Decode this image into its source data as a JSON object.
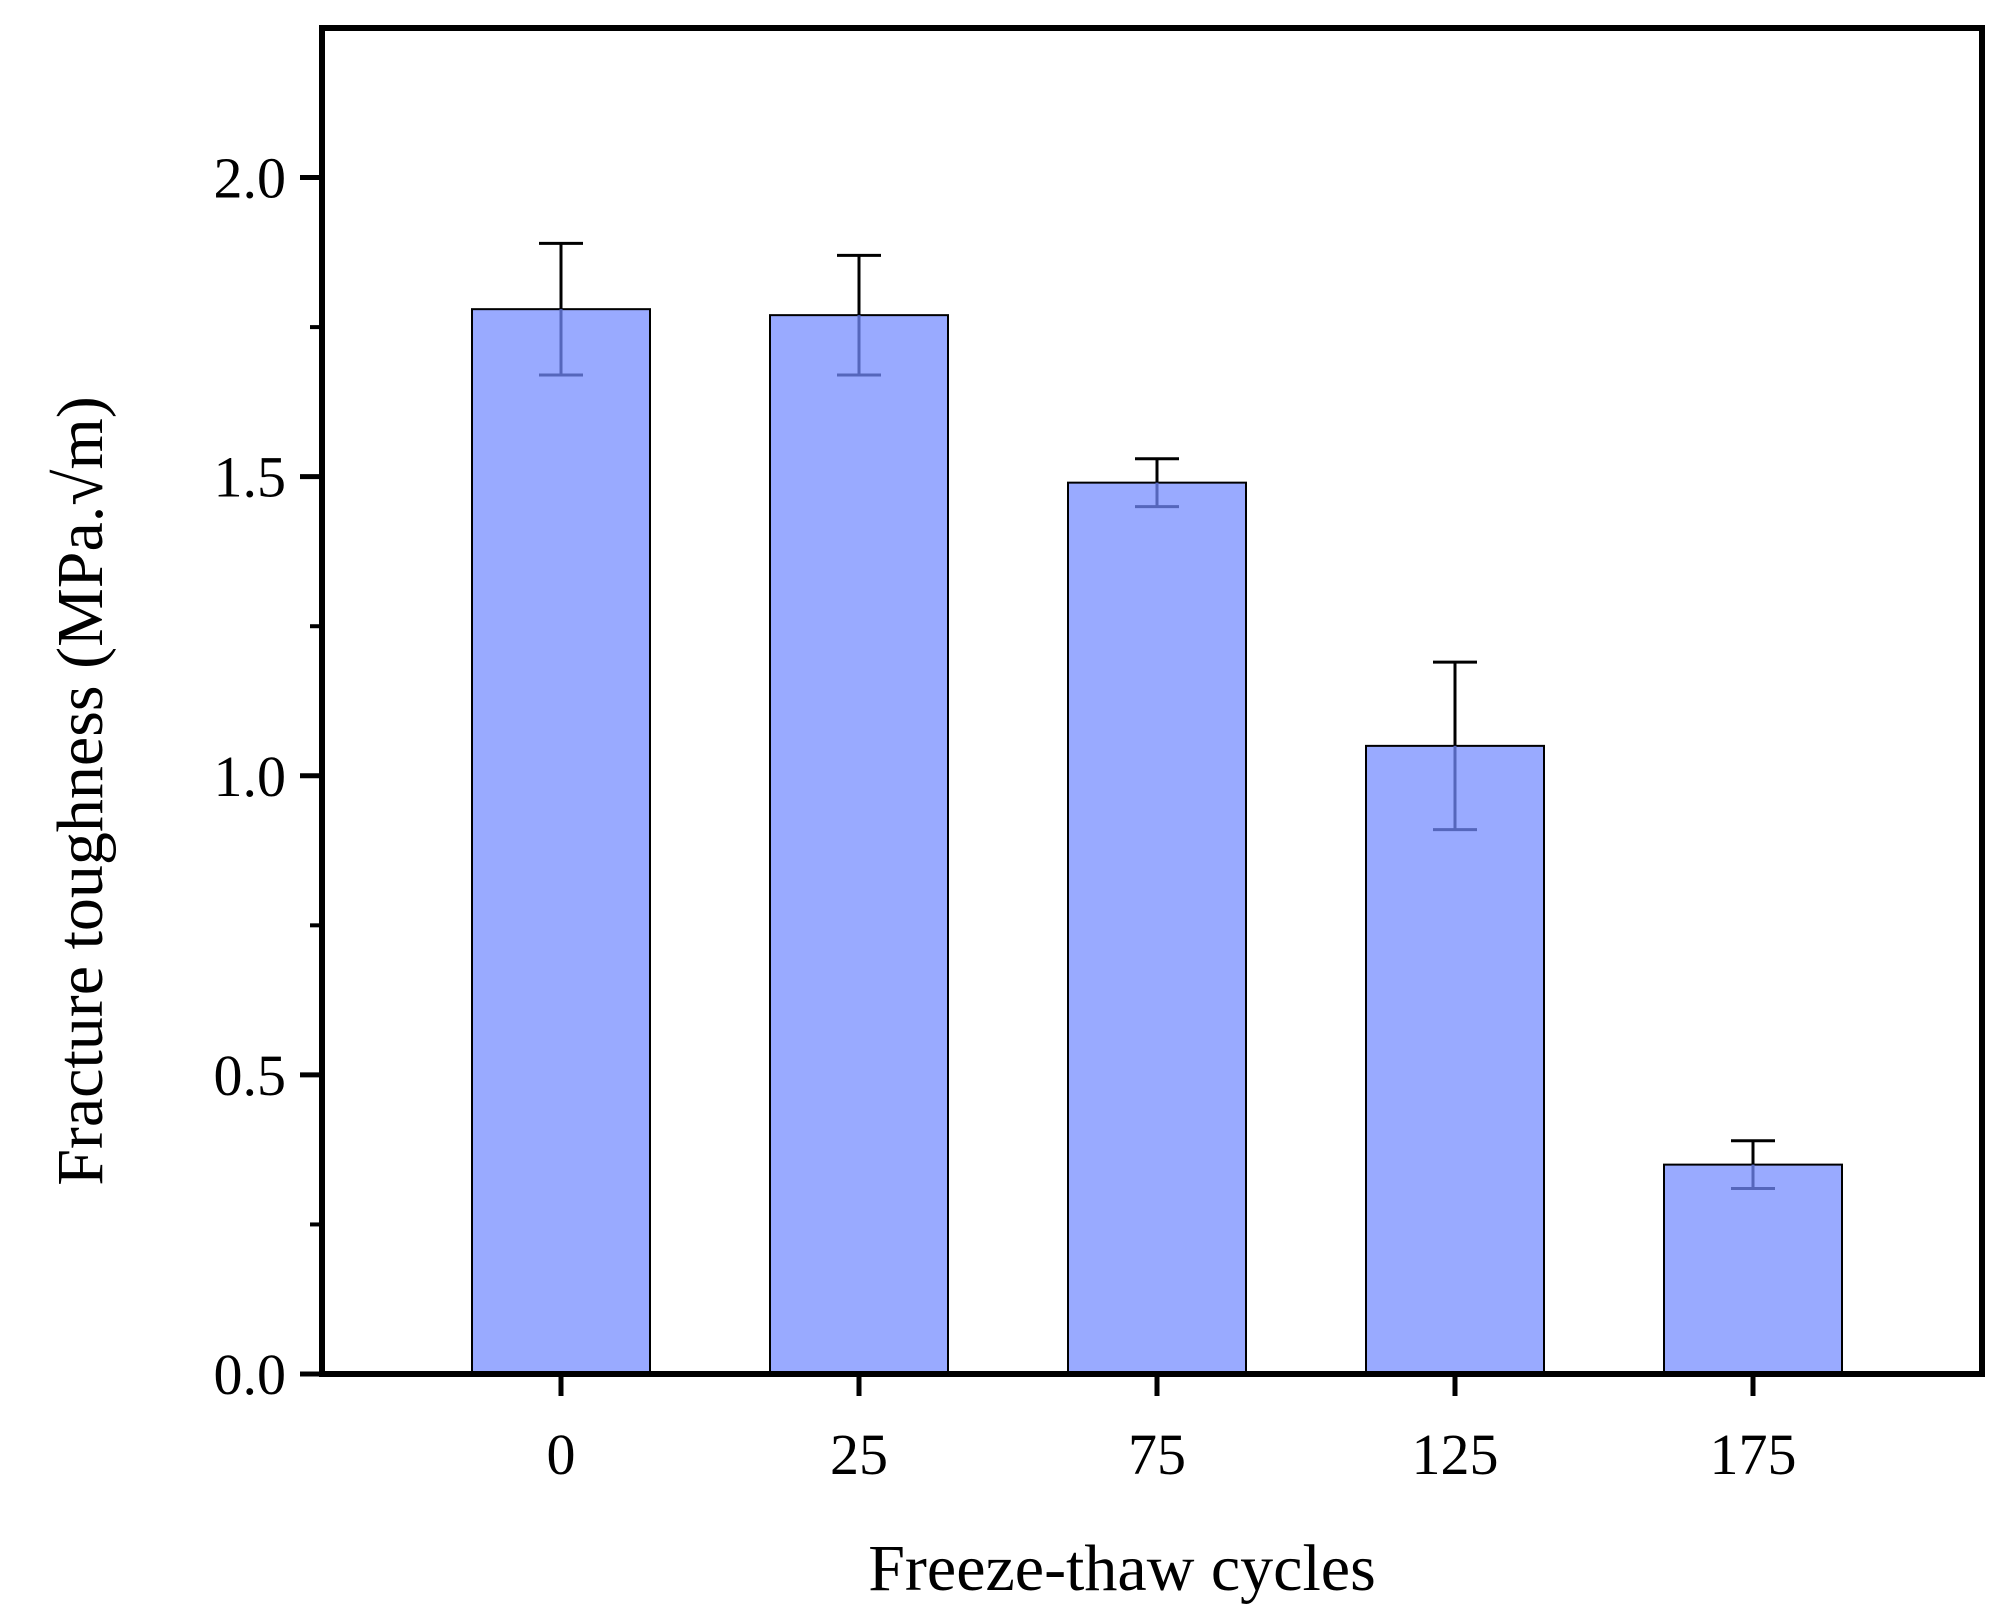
{
  "chart_data": {
    "type": "bar",
    "categories": [
      "0",
      "25",
      "75",
      "125",
      "175"
    ],
    "values": [
      1.78,
      1.77,
      1.49,
      1.05,
      0.35
    ],
    "errors": [
      0.11,
      0.1,
      0.04,
      0.14,
      0.04
    ],
    "xlabel": "Freeze-thaw cycles",
    "ylabel": "Fracture toughness (MPa.√m)",
    "ylim": [
      0,
      2.25
    ],
    "yticks": [
      "0.0",
      "0.5",
      "1.0",
      "1.5",
      "2.0"
    ],
    "ytick_values": [
      0,
      0.5,
      1.0,
      1.5,
      2.0
    ],
    "bar_color": "#99aaff",
    "error_color": "#000000",
    "grid": false
  }
}
